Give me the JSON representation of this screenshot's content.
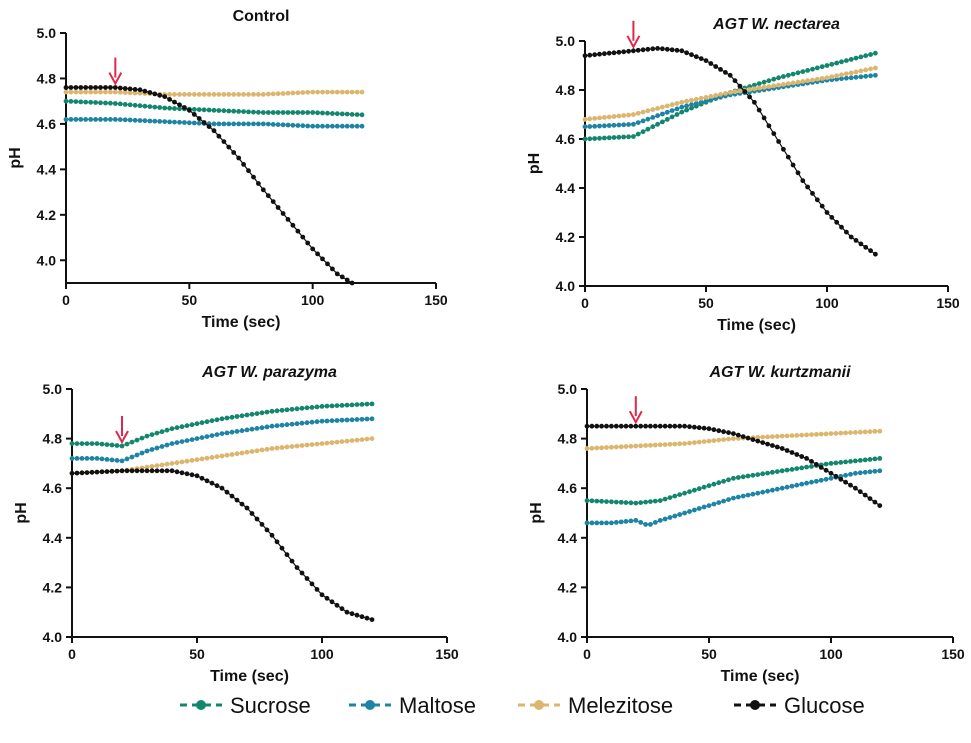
{
  "chart_data": [
    {
      "type": "scatter",
      "title": "Control",
      "title_italic": false,
      "xlabel": "Time (sec)",
      "ylabel": "pH",
      "xlim": [
        0,
        150
      ],
      "ylim": [
        3.9,
        5.0
      ],
      "xticks": [
        "0",
        "50",
        "100",
        "150"
      ],
      "yticks": [
        "4.0",
        "4.2",
        "4.4",
        "4.6",
        "4.8",
        "5.0"
      ],
      "arrow_at": {
        "x": 20,
        "y": 4.76
      },
      "series": [
        {
          "name": "Sucrose",
          "color": "#13876e",
          "x": [
            0,
            20,
            40,
            60,
            80,
            100,
            120
          ],
          "y": [
            4.7,
            4.69,
            4.67,
            4.66,
            4.65,
            4.65,
            4.64
          ]
        },
        {
          "name": "Maltose",
          "color": "#1e84a4",
          "x": [
            0,
            20,
            40,
            60,
            80,
            100,
            120
          ],
          "y": [
            4.62,
            4.62,
            4.61,
            4.6,
            4.6,
            4.59,
            4.59
          ]
        },
        {
          "name": "Melezitose",
          "color": "#dcb66e",
          "x": [
            0,
            20,
            40,
            60,
            80,
            100,
            120
          ],
          "y": [
            4.74,
            4.74,
            4.73,
            4.73,
            4.73,
            4.74,
            4.74
          ]
        },
        {
          "name": "Glucose",
          "color": "#111111",
          "x": [
            0,
            20,
            30,
            40,
            50,
            60,
            70,
            80,
            90,
            100,
            110,
            116
          ],
          "y": [
            4.76,
            4.76,
            4.75,
            4.72,
            4.66,
            4.57,
            4.45,
            4.31,
            4.18,
            4.05,
            3.94,
            3.9
          ]
        }
      ]
    },
    {
      "type": "scatter",
      "title": "AGT W. nectarea",
      "title_italic": true,
      "xlabel": "Time (sec)",
      "ylabel": "pH",
      "xlim": [
        0,
        150
      ],
      "ylim": [
        4.0,
        5.0
      ],
      "xticks": [
        "0",
        "50",
        "100",
        "150"
      ],
      "yticks": [
        "4.0",
        "4.2",
        "4.4",
        "4.6",
        "4.8",
        "5.0"
      ],
      "arrow_at": {
        "x": 20,
        "y": 4.96
      },
      "series": [
        {
          "name": "Sucrose",
          "color": "#13876e",
          "x": [
            0,
            20,
            30,
            40,
            50,
            60,
            80,
            100,
            120
          ],
          "y": [
            4.6,
            4.61,
            4.66,
            4.71,
            4.75,
            4.79,
            4.85,
            4.9,
            4.95
          ]
        },
        {
          "name": "Maltose",
          "color": "#1e84a4",
          "x": [
            0,
            20,
            40,
            60,
            80,
            100,
            120
          ],
          "y": [
            4.65,
            4.66,
            4.73,
            4.78,
            4.81,
            4.84,
            4.86
          ]
        },
        {
          "name": "Melezitose",
          "color": "#dcb66e",
          "x": [
            0,
            20,
            40,
            60,
            80,
            100,
            120
          ],
          "y": [
            4.68,
            4.7,
            4.75,
            4.79,
            4.82,
            4.85,
            4.89
          ]
        },
        {
          "name": "Glucose",
          "color": "#111111",
          "x": [
            0,
            10,
            20,
            30,
            40,
            50,
            60,
            70,
            80,
            90,
            100,
            110,
            120
          ],
          "y": [
            4.94,
            4.95,
            4.96,
            4.97,
            4.96,
            4.92,
            4.86,
            4.75,
            4.59,
            4.43,
            4.3,
            4.2,
            4.13
          ]
        }
      ]
    },
    {
      "type": "scatter",
      "title": "AGT W. parazyma",
      "title_italic": true,
      "xlabel": "Time (sec)",
      "ylabel": "pH",
      "xlim": [
        0,
        150
      ],
      "ylim": [
        4.0,
        5.0
      ],
      "xticks": [
        "0",
        "50",
        "100",
        "150"
      ],
      "yticks": [
        "4.0",
        "4.2",
        "4.4",
        "4.6",
        "4.8",
        "5.0"
      ],
      "arrow_at": {
        "x": 20,
        "y": 4.77
      },
      "series": [
        {
          "name": "Sucrose",
          "color": "#13876e",
          "x": [
            0,
            10,
            20,
            30,
            40,
            60,
            80,
            100,
            120
          ],
          "y": [
            4.78,
            4.78,
            4.77,
            4.81,
            4.84,
            4.88,
            4.91,
            4.93,
            4.94
          ]
        },
        {
          "name": "Maltose",
          "color": "#1e84a4",
          "x": [
            0,
            10,
            20,
            30,
            40,
            60,
            80,
            100,
            120
          ],
          "y": [
            4.72,
            4.72,
            4.71,
            4.75,
            4.78,
            4.82,
            4.85,
            4.87,
            4.88
          ]
        },
        {
          "name": "Melezitose",
          "color": "#dcb66e",
          "x": [
            0,
            20,
            40,
            60,
            80,
            100,
            120
          ],
          "y": [
            4.66,
            4.67,
            4.7,
            4.73,
            4.76,
            4.78,
            4.8
          ]
        },
        {
          "name": "Glucose",
          "color": "#111111",
          "x": [
            0,
            20,
            40,
            50,
            60,
            70,
            80,
            90,
            100,
            110,
            120
          ],
          "y": [
            4.66,
            4.67,
            4.67,
            4.65,
            4.6,
            4.52,
            4.41,
            4.28,
            4.17,
            4.1,
            4.07
          ]
        }
      ]
    },
    {
      "type": "scatter",
      "title": "AGT W. kurtzmanii",
      "title_italic": true,
      "xlabel": "Time (sec)",
      "ylabel": "pH",
      "xlim": [
        0,
        150
      ],
      "ylim": [
        4.0,
        5.0
      ],
      "xticks": [
        "0",
        "50",
        "100",
        "150"
      ],
      "yticks": [
        "4.0",
        "4.2",
        "4.4",
        "4.6",
        "4.8",
        "5.0"
      ],
      "arrow_at": {
        "x": 20,
        "y": 4.85
      },
      "series": [
        {
          "name": "Sucrose",
          "color": "#13876e",
          "x": [
            0,
            20,
            30,
            40,
            50,
            60,
            80,
            100,
            120
          ],
          "y": [
            4.55,
            4.54,
            4.55,
            4.58,
            4.61,
            4.64,
            4.67,
            4.7,
            4.72
          ]
        },
        {
          "name": "Maltose",
          "color": "#1e84a4",
          "x": [
            0,
            10,
            20,
            25,
            30,
            40,
            50,
            60,
            80,
            100,
            110,
            120
          ],
          "y": [
            4.46,
            4.46,
            4.47,
            4.45,
            4.47,
            4.5,
            4.53,
            4.56,
            4.6,
            4.64,
            4.66,
            4.67
          ]
        },
        {
          "name": "Melezitose",
          "color": "#dcb66e",
          "x": [
            0,
            20,
            40,
            60,
            80,
            100,
            120
          ],
          "y": [
            4.76,
            4.77,
            4.78,
            4.8,
            4.81,
            4.82,
            4.83
          ]
        },
        {
          "name": "Glucose",
          "color": "#111111",
          "x": [
            0,
            20,
            30,
            40,
            50,
            60,
            70,
            80,
            90,
            100,
            110,
            120
          ],
          "y": [
            4.85,
            4.85,
            4.85,
            4.85,
            4.84,
            4.82,
            4.79,
            4.76,
            4.72,
            4.66,
            4.6,
            4.53
          ]
        }
      ]
    }
  ],
  "legend": {
    "items": [
      {
        "label": "Sucrose",
        "color": "#13876e"
      },
      {
        "label": "Maltose",
        "color": "#1e84a4"
      },
      {
        "label": "Melezitose",
        "color": "#dcb66e"
      },
      {
        "label": "Glucose",
        "color": "#111111"
      }
    ]
  },
  "arrow_color": "#e0284a"
}
